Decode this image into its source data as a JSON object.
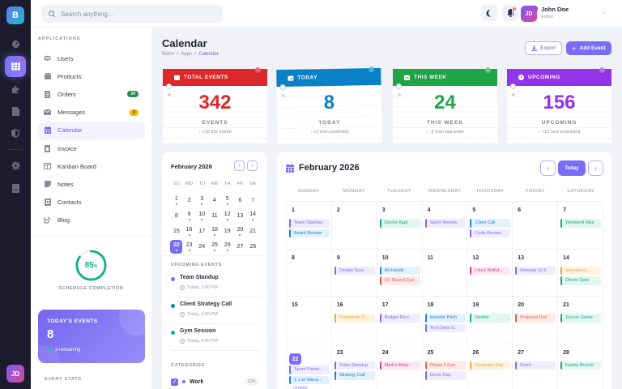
{
  "rail": {
    "logo": "B",
    "items": [
      {
        "icon": "gauge-icon"
      },
      {
        "icon": "calendar-grid-icon",
        "active": true
      },
      {
        "icon": "puzzle-icon"
      },
      {
        "icon": "document-icon"
      },
      {
        "icon": "shield-icon"
      },
      {
        "icon": "gear-icon"
      },
      {
        "icon": "book-icon"
      }
    ],
    "avatar": "JD"
  },
  "topbar": {
    "search_placeholder": "Search anything...",
    "message_badge": "4",
    "user": {
      "initials": "JD",
      "name": "John Doe",
      "role": "Admin"
    }
  },
  "sidebar": {
    "section": "APPLICATIONS",
    "items": [
      {
        "label": "Users",
        "icon": "users-icon"
      },
      {
        "label": "Products",
        "icon": "box-icon"
      },
      {
        "label": "Orders",
        "icon": "receipt-icon",
        "badge": "24",
        "badge_color": "#1e8e4e"
      },
      {
        "label": "Messages",
        "icon": "envelope-icon",
        "badge": "5",
        "badge_color": "#f5b800"
      },
      {
        "label": "Calendar",
        "icon": "calendar-icon",
        "active": true
      },
      {
        "label": "Invoice",
        "icon": "invoice-icon"
      },
      {
        "label": "Kanban Board",
        "icon": "kanban-icon"
      },
      {
        "label": "Notes",
        "icon": "note-icon"
      },
      {
        "label": "Contacts",
        "icon": "contacts-icon"
      },
      {
        "label": "Blog",
        "icon": "blog-icon"
      }
    ],
    "completion": {
      "value": "85",
      "unit": "%",
      "label": "SCHEDULE COMPLETION",
      "percent": 85
    },
    "today_card": {
      "title": "TODAY'S EVENTS",
      "count": "8",
      "remaining": "3 remaining"
    },
    "stats_heading": "EVENT STATS"
  },
  "page": {
    "title": "Calendar",
    "breadcrumb": [
      "Botox",
      "Apps",
      "Calendar"
    ],
    "export_label": "Export",
    "add_label": "Add Event"
  },
  "stats": [
    {
      "header": "TOTAL EVENTS",
      "value": "342",
      "label": "EVENTS",
      "sub": "↑ +18 this month",
      "color": "#dc2828",
      "icon": "calendar-icon"
    },
    {
      "header": "TODAY",
      "value": "8",
      "label": "TODAY",
      "sub": "↑ +2 from yesterday",
      "color": "#0a80c6",
      "icon": "calendar-day-icon"
    },
    {
      "header": "THIS WEEK",
      "value": "24",
      "label": "THIS WEEK",
      "sub": "↓ -3 from last week",
      "color": "#1fa448",
      "icon": "calendar-week-icon"
    },
    {
      "header": "UPCOMING",
      "value": "156",
      "label": "UPCOMING",
      "sub": "↑ +12 new scheduled",
      "color": "#9333ea",
      "icon": "clock-icon"
    }
  ],
  "mini_calendar": {
    "title": "February 2026",
    "dows": [
      "SU",
      "MO",
      "TU",
      "WE",
      "TH",
      "FR",
      "SA"
    ],
    "days": [
      {
        "d": "1",
        "dot": true
      },
      {
        "d": "2"
      },
      {
        "d": "3",
        "dot": true
      },
      {
        "d": "4"
      },
      {
        "d": "5",
        "dot": true
      },
      {
        "d": "6"
      },
      {
        "d": "7"
      },
      {
        "d": "8"
      },
      {
        "d": "9",
        "dot": true
      },
      {
        "d": "10",
        "dot": true
      },
      {
        "d": "11"
      },
      {
        "d": "12",
        "dot": true
      },
      {
        "d": "13"
      },
      {
        "d": "14",
        "dot": true
      },
      {
        "d": "15"
      },
      {
        "d": "16",
        "dot": true
      },
      {
        "d": "17"
      },
      {
        "d": "18",
        "dot": true
      },
      {
        "d": "19"
      },
      {
        "d": "20",
        "dot": true
      },
      {
        "d": "21"
      },
      {
        "d": "22",
        "dot": true,
        "today": true
      },
      {
        "d": "23",
        "dot": true
      },
      {
        "d": "24"
      },
      {
        "d": "25",
        "dot": true
      },
      {
        "d": "26",
        "dot": true
      },
      {
        "d": "27"
      },
      {
        "d": "28"
      }
    ],
    "upcoming_heading": "UPCOMING EVENTS",
    "upcoming": [
      {
        "name": "Team Standup",
        "time": "Today, 2:00 PM",
        "color": "#7b6cf6"
      },
      {
        "name": "Client Strategy Call",
        "time": "Today, 4:30 PM",
        "color": "#0a80c6"
      },
      {
        "name": "Gym Session",
        "time": "Today, 6:00 PM",
        "color": "#17b08a"
      }
    ],
    "categories_heading": "CATEGORIES",
    "categories": [
      {
        "name": "Work",
        "count": "124",
        "checked": true
      }
    ]
  },
  "calendar": {
    "title": "February 2026",
    "today_label": "Today",
    "dows": [
      "SUNDAY",
      "MONDAY",
      "TUESDAY",
      "WEDNESDAY",
      "THURSDAY",
      "FRIDAY",
      "SATURDAY"
    ],
    "event_colors": {
      "purple": {
        "bg": "#efedfd",
        "fg": "#7b6cf6"
      },
      "blue": {
        "bg": "#e3f1fc",
        "fg": "#1a87d6"
      },
      "teal": {
        "bg": "#e1f6ef",
        "fg": "#17a985"
      },
      "red": {
        "bg": "#fde9e6",
        "fg": "#e4634c"
      },
      "pink": {
        "bg": "#fde7f0",
        "fg": "#df3f85"
      },
      "orange": {
        "bg": "#fff2e0",
        "fg": "#f0a43a"
      }
    },
    "days": [
      {
        "d": "1",
        "events": [
          {
            "t": "Team Standup",
            "c": "purple"
          },
          {
            "t": "Board Review",
            "c": "blue"
          }
        ]
      },
      {
        "d": "2",
        "events": []
      },
      {
        "d": "3",
        "events": [
          {
            "t": "Doctor Appt",
            "c": "teal"
          }
        ]
      },
      {
        "d": "4",
        "events": [
          {
            "t": "Sprint Review",
            "c": "purple"
          }
        ]
      },
      {
        "d": "5",
        "events": [
          {
            "t": "Client Call",
            "c": "blue"
          },
          {
            "t": "Code Review",
            "c": "purple"
          }
        ]
      },
      {
        "d": "6",
        "events": []
      },
      {
        "d": "7",
        "events": [
          {
            "t": "Weekend Hike",
            "c": "teal"
          }
        ]
      },
      {
        "d": "8",
        "events": []
      },
      {
        "d": "9",
        "events": [
          {
            "t": "Design Sync",
            "c": "purple"
          }
        ]
      },
      {
        "d": "10",
        "events": [
          {
            "t": "All-Hands",
            "c": "blue"
          },
          {
            "t": "Q1 Report Due",
            "c": "red"
          }
        ]
      },
      {
        "d": "11",
        "events": []
      },
      {
        "d": "12",
        "events": [
          {
            "t": "Lisa's Birthd...",
            "c": "pink"
          }
        ]
      },
      {
        "d": "13",
        "events": [
          {
            "t": "Release v2.5",
            "c": "purple"
          }
        ]
      },
      {
        "d": "14",
        "events": [
          {
            "t": "Valentine's ...",
            "c": "orange"
          },
          {
            "t": "Dinner Date",
            "c": "teal"
          }
        ]
      },
      {
        "d": "15",
        "events": []
      },
      {
        "d": "16",
        "events": [
          {
            "t": "Presidents D...",
            "c": "orange"
          }
        ]
      },
      {
        "d": "17",
        "events": [
          {
            "t": "Budget Revi...",
            "c": "purple"
          }
        ]
      },
      {
        "d": "18",
        "events": [
          {
            "t": "Investor Pitch",
            "c": "blue"
          },
          {
            "t": "Tech Debt S...",
            "c": "purple"
          }
        ]
      },
      {
        "d": "19",
        "events": [
          {
            "t": "Dentist",
            "c": "teal"
          }
        ]
      },
      {
        "d": "20",
        "events": [
          {
            "t": "Proposal Due",
            "c": "red"
          }
        ]
      },
      {
        "d": "21",
        "events": [
          {
            "t": "Soccer Game",
            "c": "teal"
          }
        ]
      },
      {
        "d": "22",
        "today": true,
        "events": [
          {
            "t": "Sprint Planni...",
            "c": "purple"
          },
          {
            "t": "1:1 w/ Mana...",
            "c": "blue"
          }
        ],
        "more": "+3 more"
      },
      {
        "d": "23",
        "events": [
          {
            "t": "Team Standup",
            "c": "purple"
          },
          {
            "t": "Strategy Call",
            "c": "blue"
          }
        ]
      },
      {
        "d": "24",
        "events": [
          {
            "t": "Mark's Bday",
            "c": "pink"
          }
        ]
      },
      {
        "d": "25",
        "events": [
          {
            "t": "Phase 2 Due",
            "c": "red"
          },
          {
            "t": "Demo Day",
            "c": "purple"
          }
        ]
      },
      {
        "d": "26",
        "events": [
          {
            "t": "Company Day",
            "c": "orange"
          }
        ]
      },
      {
        "d": "27",
        "events": [
          {
            "t": "Retro",
            "c": "purple"
          }
        ]
      },
      {
        "d": "28",
        "events": [
          {
            "t": "Family Brunch",
            "c": "teal"
          }
        ]
      }
    ]
  }
}
